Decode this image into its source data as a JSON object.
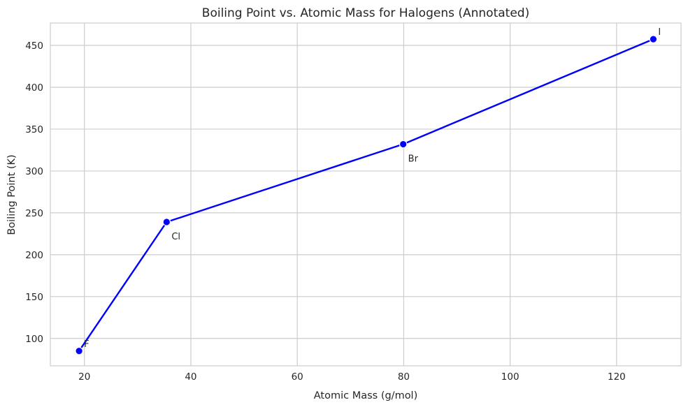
{
  "chart_data": {
    "type": "line",
    "title": "Boiling Point vs. Atomic Mass for Halogens (Annotated)",
    "xlabel": "Atomic Mass (g/mol)",
    "ylabel": "Boiling Point (K)",
    "xlim": [
      13.6,
      132.1
    ],
    "ylim": [
      67.3,
      476.7
    ],
    "xticks": [
      20,
      40,
      60,
      80,
      100,
      120
    ],
    "yticks": [
      100,
      150,
      200,
      250,
      300,
      350,
      400,
      450
    ],
    "grid": true,
    "series": [
      {
        "color": "#0000ff",
        "points": [
          {
            "x": 19.0,
            "y": 85.0,
            "label": "F"
          },
          {
            "x": 35.45,
            "y": 239.1,
            "label": "Cl"
          },
          {
            "x": 79.9,
            "y": 332.0,
            "label": "Br"
          },
          {
            "x": 126.9,
            "y": 457.4,
            "label": "I"
          }
        ]
      }
    ]
  }
}
